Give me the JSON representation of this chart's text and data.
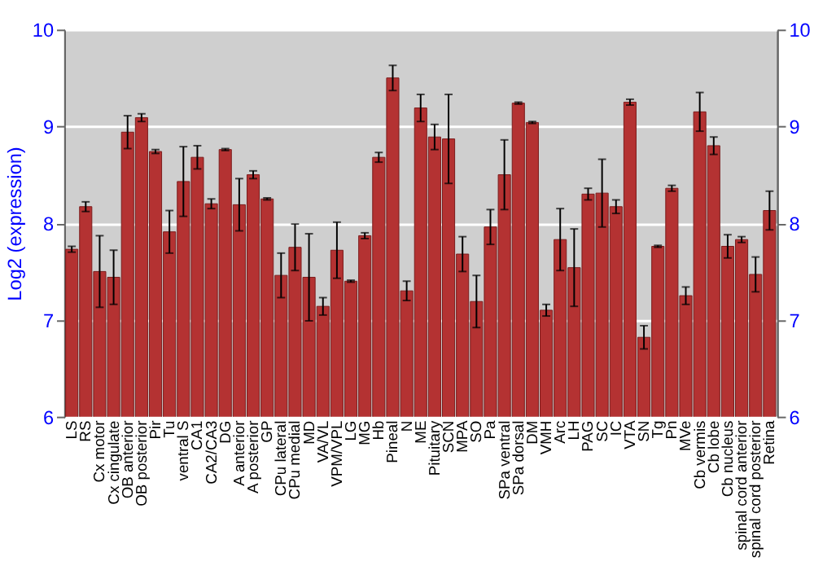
{
  "chart_data": {
    "type": "bar",
    "ylabel": "Log2 (expression)",
    "categories": [
      "LS",
      "RS",
      "Cx motor",
      "Cx cingulate",
      "OB anterior",
      "OB posterior",
      "Pir",
      "Tu",
      "ventral S",
      "CA1",
      "CA2/CA3",
      "DG",
      "A anterior",
      "A posterior",
      "GP",
      "CPu lateral",
      "CPu medial",
      "MD",
      "VA/VL",
      "VPM/VPL",
      "LG",
      "MG",
      "Hb",
      "Pineal",
      "N",
      "ME",
      "Pituitary",
      "SCN",
      "MPA",
      "SO",
      "Pa",
      "SPa ventral",
      "SPa dorsal",
      "DM",
      "VMH",
      "Arc",
      "LH",
      "PAG",
      "SC",
      "IC",
      "VTA",
      "SN",
      "Tg",
      "Pn",
      "MVe",
      "Cb vermis",
      "Cb lobe",
      "Cb nucleus",
      "spinal cord anterior",
      "spinal cord posterior",
      "Retina"
    ],
    "values": [
      7.73,
      8.17,
      7.5,
      7.44,
      8.94,
      9.09,
      8.74,
      7.91,
      8.43,
      8.68,
      8.2,
      8.76,
      8.19,
      8.5,
      8.25,
      7.46,
      7.75,
      7.44,
      7.14,
      7.72,
      7.4,
      7.87,
      8.68,
      9.5,
      7.3,
      9.19,
      8.89,
      8.87,
      7.68,
      7.19,
      7.96,
      8.5,
      9.24,
      9.04,
      7.1,
      7.83,
      7.54,
      8.3,
      8.31,
      8.17,
      9.25,
      6.82,
      7.76,
      8.36,
      7.25,
      9.15,
      8.8,
      7.76,
      7.83,
      7.47,
      8.13
    ],
    "errors": [
      0.03,
      0.05,
      0.37,
      0.28,
      0.17,
      0.04,
      0.02,
      0.22,
      0.36,
      0.12,
      0.05,
      0.01,
      0.27,
      0.04,
      0.01,
      0.23,
      0.24,
      0.45,
      0.09,
      0.29,
      0.01,
      0.03,
      0.05,
      0.13,
      0.1,
      0.14,
      0.13,
      0.46,
      0.18,
      0.27,
      0.18,
      0.36,
      0.01,
      0.01,
      0.06,
      0.32,
      0.4,
      0.06,
      0.35,
      0.07,
      0.03,
      0.12,
      0.01,
      0.03,
      0.09,
      0.2,
      0.09,
      0.12,
      0.03,
      0.18,
      0.2
    ],
    "color": "#b43232",
    "ylim": [
      6,
      10
    ],
    "yticks": [
      6,
      7,
      8,
      9,
      10
    ],
    "y2lim": [
      6,
      10
    ],
    "y2ticks": [
      6,
      7,
      8,
      9,
      10
    ],
    "grid": "y"
  }
}
